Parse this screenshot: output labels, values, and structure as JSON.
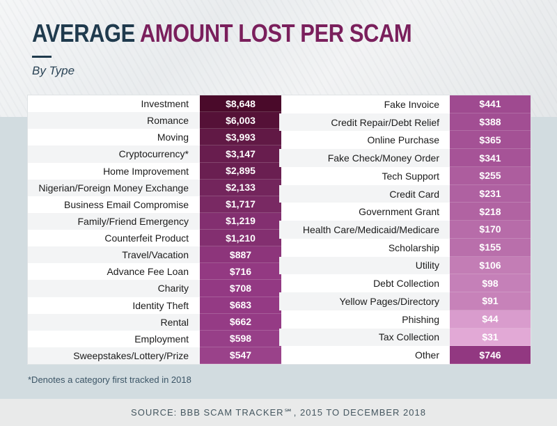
{
  "title": {
    "part1": "AVERAGE",
    "part2": "AMOUNT LOST PER SCAM"
  },
  "subtitle": "By Type",
  "footnote": "*Denotes a category first tracked in 2018",
  "source": "SOURCE: BBB SCAM TRACKER℠, 2015 TO DECEMBER 2018",
  "chart_data": {
    "type": "table",
    "title": "AVERAGE AMOUNT LOST PER SCAM",
    "subtitle": "By Type",
    "columns": [
      {
        "rows": [
          {
            "label": "Investment",
            "value": "$8,648",
            "amount": 8648
          },
          {
            "label": "Romance",
            "value": "$6,003",
            "amount": 6003
          },
          {
            "label": "Moving",
            "value": "$3,993",
            "amount": 3993
          },
          {
            "label": "Cryptocurrency*",
            "value": "$3,147",
            "amount": 3147
          },
          {
            "label": "Home Improvement",
            "value": "$2,895",
            "amount": 2895
          },
          {
            "label": "Nigerian/Foreign Money Exchange",
            "value": "$2,133",
            "amount": 2133
          },
          {
            "label": "Business Email Compromise",
            "value": "$1,717",
            "amount": 1717
          },
          {
            "label": "Family/Friend Emergency",
            "value": "$1,219",
            "amount": 1219
          },
          {
            "label": "Counterfeit Product",
            "value": "$1,210",
            "amount": 1210
          },
          {
            "label": "Travel/Vacation",
            "value": "$887",
            "amount": 887
          },
          {
            "label": "Advance Fee Loan",
            "value": "$716",
            "amount": 716
          },
          {
            "label": "Charity",
            "value": "$708",
            "amount": 708
          },
          {
            "label": "Identity Theft",
            "value": "$683",
            "amount": 683
          },
          {
            "label": "Rental",
            "value": "$662",
            "amount": 662
          },
          {
            "label": "Employment",
            "value": "$598",
            "amount": 598
          },
          {
            "label": "Sweepstakes/Lottery/Prize",
            "value": "$547",
            "amount": 547
          }
        ]
      },
      {
        "rows": [
          {
            "label": "Fake Invoice",
            "value": "$441",
            "amount": 441
          },
          {
            "label": "Credit Repair/Debt Relief",
            "value": "$388",
            "amount": 388
          },
          {
            "label": "Online Purchase",
            "value": "$365",
            "amount": 365
          },
          {
            "label": "Fake Check/Money Order",
            "value": "$341",
            "amount": 341
          },
          {
            "label": "Tech Support",
            "value": "$255",
            "amount": 255
          },
          {
            "label": "Credit Card",
            "value": "$231",
            "amount": 231
          },
          {
            "label": "Government Grant",
            "value": "$218",
            "amount": 218
          },
          {
            "label": "Health Care/Medicaid/Medicare",
            "value": "$170",
            "amount": 170
          },
          {
            "label": "Scholarship",
            "value": "$155",
            "amount": 155
          },
          {
            "label": "Utility",
            "value": "$106",
            "amount": 106
          },
          {
            "label": "Debt Collection",
            "value": "$98",
            "amount": 98
          },
          {
            "label": "Yellow Pages/Directory",
            "value": "$91",
            "amount": 91
          },
          {
            "label": "Phishing",
            "value": "$44",
            "amount": 44
          },
          {
            "label": "Tax Collection",
            "value": "$31",
            "amount": 31
          },
          {
            "label": "Other",
            "value": "$746",
            "amount": 746
          }
        ]
      }
    ]
  },
  "colors": {
    "title_dark": "#1f3a4d",
    "title_accent": "#7a1f5c",
    "value_darkest": "#4a0a2a",
    "value_lightest": "#e2a9d6"
  }
}
